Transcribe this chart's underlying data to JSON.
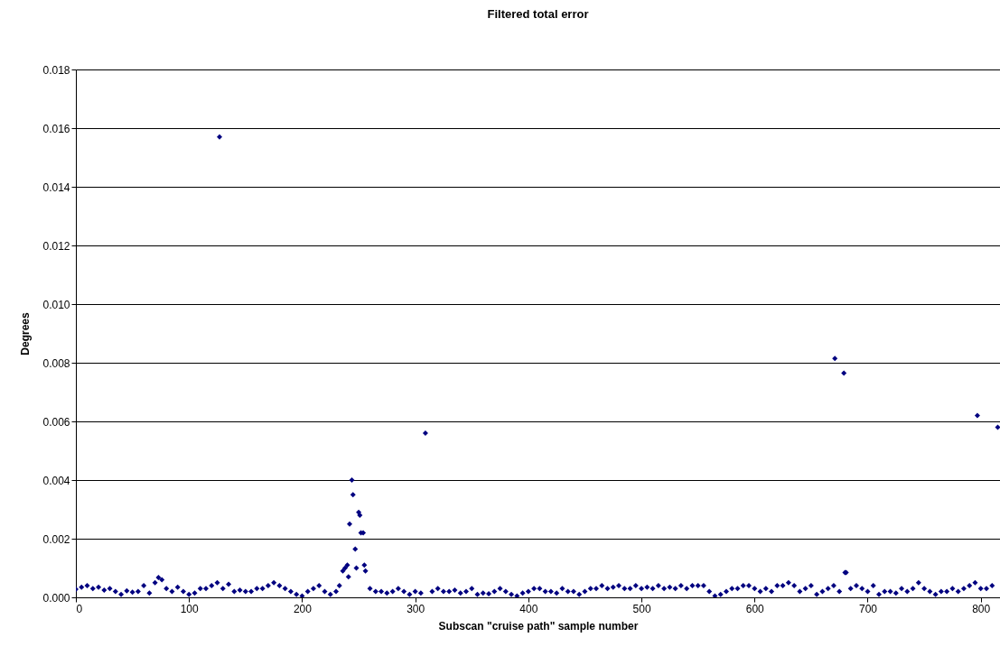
{
  "chart_data": {
    "type": "scatter",
    "title": "Filtered total error",
    "xlabel": "Subscan \"cruise path\" sample number",
    "ylabel": "Degrees",
    "xlim": [
      0,
      817
    ],
    "xticks": [
      0,
      100,
      200,
      300,
      400,
      500,
      600,
      700,
      800
    ],
    "ylim": [
      0,
      0.018
    ],
    "yticks": [
      {
        "value": 0,
        "label": "0.000"
      },
      {
        "value": 0.002,
        "label": "0.002"
      },
      {
        "value": 0.004,
        "label": "0.004"
      },
      {
        "value": 0.006,
        "label": "0.006"
      },
      {
        "value": 0.008,
        "label": "0.008"
      },
      {
        "value": 0.01,
        "label": "0.010"
      },
      {
        "value": 0.012,
        "label": "0.012"
      },
      {
        "value": 0.014,
        "label": "0.014"
      },
      {
        "value": 0.016,
        "label": "0.016"
      },
      {
        "value": 0.018,
        "label": "0.018"
      }
    ],
    "grid": "y",
    "marker": "diamond",
    "legend": false,
    "series": [
      {
        "color": "#000080",
        "x": [
          0,
          5,
          10,
          15,
          20,
          25,
          30,
          35,
          40,
          45,
          50,
          55,
          60,
          65,
          70,
          73,
          76,
          80,
          85,
          90,
          95,
          100,
          105,
          110,
          115,
          120,
          125,
          127,
          130,
          135,
          140,
          145,
          150,
          155,
          160,
          165,
          170,
          175,
          180,
          185,
          190,
          195,
          200,
          205,
          210,
          215,
          220,
          225,
          230,
          233,
          236,
          238,
          240,
          241,
          242,
          244,
          245,
          247,
          248,
          250,
          251,
          252,
          254,
          255,
          256,
          260,
          265,
          270,
          275,
          280,
          285,
          290,
          295,
          300,
          305,
          309,
          315,
          320,
          325,
          330,
          335,
          340,
          345,
          350,
          355,
          360,
          365,
          370,
          375,
          380,
          385,
          390,
          395,
          400,
          405,
          410,
          415,
          420,
          425,
          430,
          435,
          440,
          445,
          450,
          455,
          460,
          465,
          470,
          475,
          480,
          485,
          490,
          495,
          500,
          505,
          510,
          515,
          520,
          525,
          530,
          535,
          540,
          545,
          550,
          555,
          560,
          565,
          570,
          575,
          580,
          585,
          590,
          595,
          600,
          605,
          610,
          615,
          620,
          625,
          630,
          635,
          640,
          645,
          650,
          655,
          660,
          665,
          670,
          671,
          675,
          679,
          680,
          681,
          685,
          690,
          695,
          700,
          705,
          710,
          715,
          720,
          725,
          730,
          735,
          740,
          745,
          750,
          755,
          760,
          765,
          770,
          775,
          780,
          785,
          790,
          795,
          797,
          800,
          805,
          810,
          815
        ],
        "values": [
          0.00028,
          0.00035,
          0.0004,
          0.0003,
          0.00035,
          0.00025,
          0.0003,
          0.0002,
          0.0001,
          0.00022,
          0.00018,
          0.0002,
          0.0004,
          0.00015,
          0.0005,
          0.00068,
          0.0006,
          0.0003,
          0.0002,
          0.00035,
          0.0002,
          0.0001,
          0.00015,
          0.0003,
          0.0003,
          0.0004,
          0.0005,
          0.0157,
          0.0003,
          0.00045,
          0.0002,
          0.00025,
          0.0002,
          0.0002,
          0.0003,
          0.0003,
          0.0004,
          0.0005,
          0.0004,
          0.0003,
          0.0002,
          0.0001,
          5e-05,
          0.0002,
          0.0003,
          0.0004,
          0.0002,
          0.0001,
          0.0002,
          0.0004,
          0.0009,
          0.001,
          0.0011,
          0.0007,
          0.0025,
          0.004,
          0.0035,
          0.00165,
          0.001,
          0.0029,
          0.0028,
          0.0022,
          0.0022,
          0.0011,
          0.0009,
          0.0003,
          0.0002,
          0.0002,
          0.00015,
          0.0002,
          0.0003,
          0.0002,
          0.0001,
          0.0002,
          0.00015,
          0.0056,
          0.0002,
          0.0003,
          0.0002,
          0.0002,
          0.00025,
          0.00015,
          0.0002,
          0.0003,
          0.0001,
          0.00015,
          0.00012,
          0.0002,
          0.0003,
          0.0002,
          0.0001,
          5e-05,
          0.00015,
          0.0002,
          0.0003,
          0.0003,
          0.0002,
          0.0002,
          0.00015,
          0.0003,
          0.0002,
          0.0002,
          0.0001,
          0.0002,
          0.0003,
          0.0003,
          0.0004,
          0.0003,
          0.00035,
          0.0004,
          0.0003,
          0.0003,
          0.0004,
          0.0003,
          0.00035,
          0.0003,
          0.0004,
          0.0003,
          0.00035,
          0.0003,
          0.0004,
          0.0003,
          0.0004,
          0.0004,
          0.0004,
          0.0002,
          5e-05,
          0.0001,
          0.0002,
          0.0003,
          0.0003,
          0.0004,
          0.0004,
          0.0003,
          0.0002,
          0.0003,
          0.0002,
          0.0004,
          0.0004,
          0.0005,
          0.0004,
          0.0002,
          0.0003,
          0.0004,
          0.0001,
          0.0002,
          0.0003,
          0.0004,
          0.00815,
          0.0002,
          0.00765,
          0.00085,
          0.00085,
          0.0003,
          0.0004,
          0.0003,
          0.0002,
          0.0004,
          0.0001,
          0.0002,
          0.0002,
          0.00015,
          0.0003,
          0.0002,
          0.0003,
          0.0005,
          0.0003,
          0.0002,
          0.0001,
          0.0002,
          0.0002,
          0.0003,
          0.0002,
          0.0003,
          0.0004,
          0.0005,
          0.0062,
          0.0003,
          0.0003,
          0.0004,
          0.0058
        ]
      }
    ]
  }
}
